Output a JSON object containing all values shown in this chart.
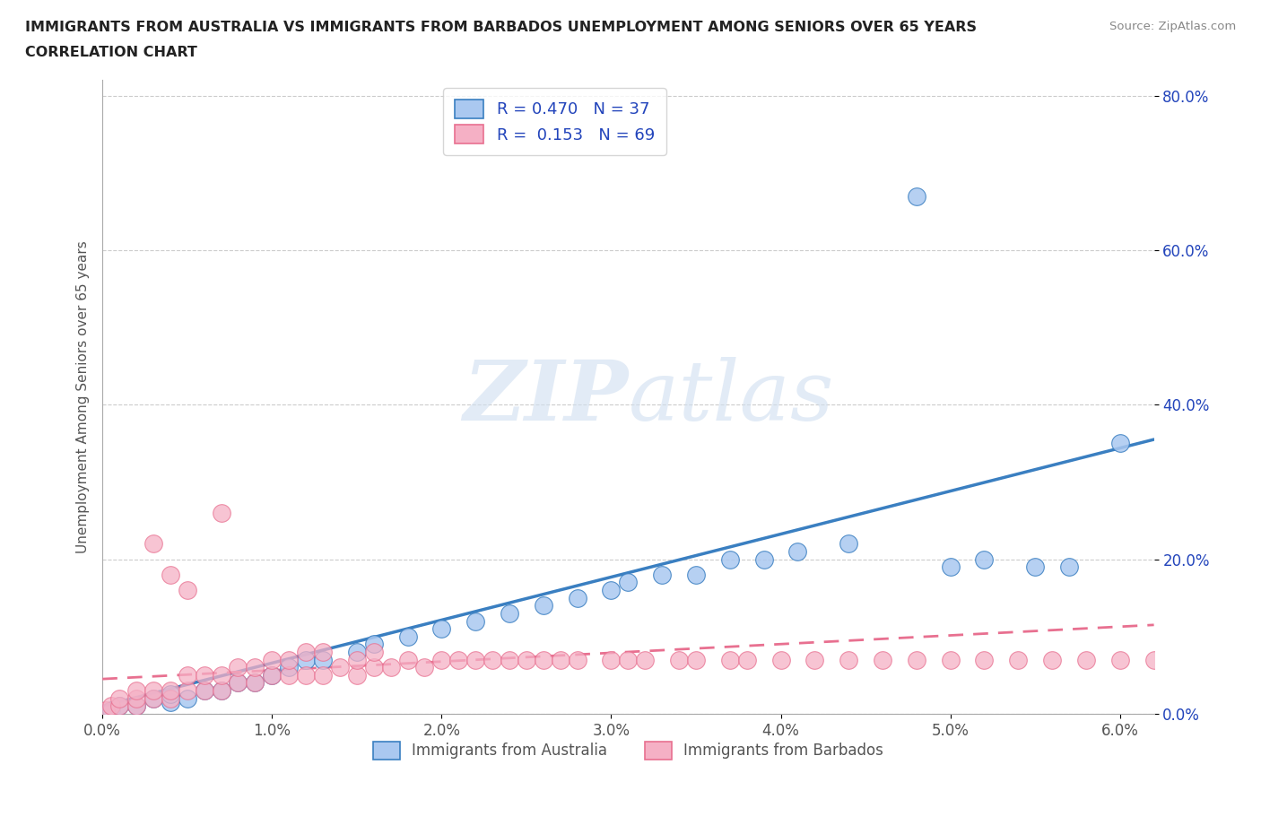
{
  "title_line1": "IMMIGRANTS FROM AUSTRALIA VS IMMIGRANTS FROM BARBADOS UNEMPLOYMENT AMONG SENIORS OVER 65 YEARS",
  "title_line2": "CORRELATION CHART",
  "source_text": "Source: ZipAtlas.com",
  "ylabel": "Unemployment Among Seniors over 65 years",
  "xlim": [
    0.0,
    0.062
  ],
  "ylim": [
    0.0,
    0.82
  ],
  "xticks": [
    0.0,
    0.01,
    0.02,
    0.03,
    0.04,
    0.05,
    0.06
  ],
  "xticklabels": [
    "0.0%",
    "1.0%",
    "2.0%",
    "3.0%",
    "4.0%",
    "5.0%",
    "6.0%"
  ],
  "yticks": [
    0.0,
    0.2,
    0.4,
    0.6,
    0.8
  ],
  "yticklabels": [
    "0.0%",
    "20.0%",
    "40.0%",
    "60.0%",
    "80.0%"
  ],
  "australia_color": "#aac8f0",
  "barbados_color": "#f5b0c5",
  "australia_line_color": "#3a7fc1",
  "barbados_line_color": "#e87090",
  "R_australia": 0.47,
  "N_australia": 37,
  "R_barbados": 0.153,
  "N_barbados": 69,
  "legend_text_color": "#2244bb",
  "watermark_color": "#d0dff0",
  "background_color": "#ffffff",
  "grid_color": "#cccccc",
  "australia_x": [
    0.0005,
    0.001,
    0.002,
    0.003,
    0.004,
    0.004,
    0.005,
    0.006,
    0.007,
    0.008,
    0.009,
    0.01,
    0.011,
    0.012,
    0.013,
    0.015,
    0.016,
    0.018,
    0.02,
    0.022,
    0.024,
    0.026,
    0.028,
    0.03,
    0.031,
    0.033,
    0.035,
    0.037,
    0.039,
    0.041,
    0.044,
    0.048,
    0.05,
    0.052,
    0.055,
    0.057,
    0.06
  ],
  "australia_y": [
    0.005,
    0.01,
    0.01,
    0.02,
    0.015,
    0.025,
    0.02,
    0.03,
    0.03,
    0.04,
    0.04,
    0.05,
    0.06,
    0.07,
    0.07,
    0.08,
    0.09,
    0.1,
    0.11,
    0.12,
    0.13,
    0.14,
    0.15,
    0.16,
    0.17,
    0.18,
    0.18,
    0.2,
    0.2,
    0.21,
    0.22,
    0.67,
    0.19,
    0.2,
    0.19,
    0.19,
    0.35
  ],
  "barbados_x": [
    0.0002,
    0.0005,
    0.001,
    0.001,
    0.002,
    0.002,
    0.002,
    0.003,
    0.003,
    0.003,
    0.004,
    0.004,
    0.004,
    0.005,
    0.005,
    0.005,
    0.006,
    0.006,
    0.007,
    0.007,
    0.007,
    0.008,
    0.008,
    0.009,
    0.009,
    0.01,
    0.01,
    0.011,
    0.011,
    0.012,
    0.012,
    0.013,
    0.013,
    0.014,
    0.015,
    0.015,
    0.016,
    0.016,
    0.017,
    0.018,
    0.019,
    0.02,
    0.021,
    0.022,
    0.023,
    0.024,
    0.025,
    0.026,
    0.027,
    0.028,
    0.03,
    0.031,
    0.032,
    0.034,
    0.035,
    0.037,
    0.038,
    0.04,
    0.042,
    0.044,
    0.046,
    0.048,
    0.05,
    0.052,
    0.054,
    0.056,
    0.058,
    0.06,
    0.062
  ],
  "barbados_y": [
    0.005,
    0.01,
    0.01,
    0.02,
    0.01,
    0.02,
    0.03,
    0.02,
    0.03,
    0.22,
    0.02,
    0.03,
    0.18,
    0.03,
    0.05,
    0.16,
    0.03,
    0.05,
    0.03,
    0.05,
    0.26,
    0.04,
    0.06,
    0.04,
    0.06,
    0.05,
    0.07,
    0.05,
    0.07,
    0.05,
    0.08,
    0.05,
    0.08,
    0.06,
    0.05,
    0.07,
    0.06,
    0.08,
    0.06,
    0.07,
    0.06,
    0.07,
    0.07,
    0.07,
    0.07,
    0.07,
    0.07,
    0.07,
    0.07,
    0.07,
    0.07,
    0.07,
    0.07,
    0.07,
    0.07,
    0.07,
    0.07,
    0.07,
    0.07,
    0.07,
    0.07,
    0.07,
    0.07,
    0.07,
    0.07,
    0.07,
    0.07,
    0.07,
    0.07
  ],
  "aus_trend_x0": 0.0,
  "aus_trend_y0": 0.01,
  "aus_trend_x1": 0.062,
  "aus_trend_y1": 0.355,
  "bar_trend_x0": 0.0,
  "bar_trend_y0": 0.045,
  "bar_trend_x1": 0.062,
  "bar_trend_y1": 0.115
}
